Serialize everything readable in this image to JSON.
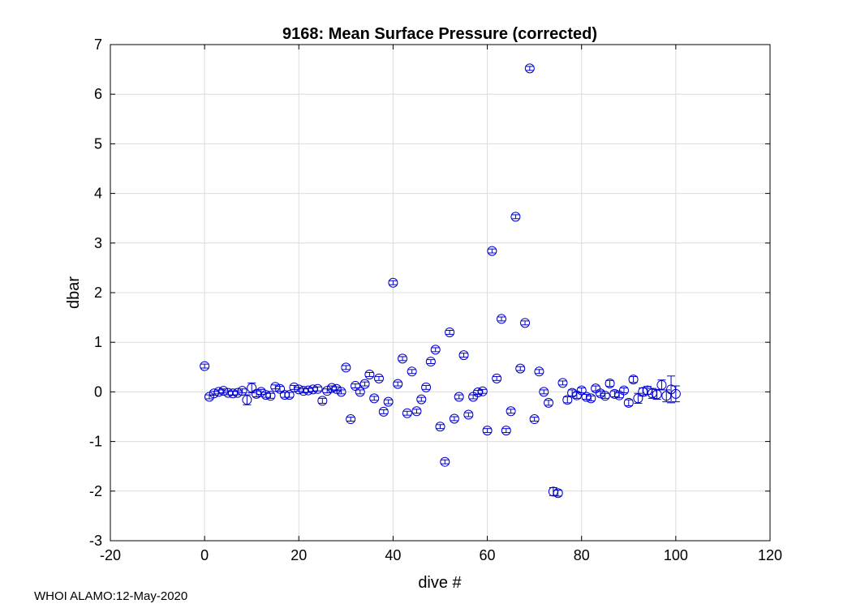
{
  "chart_data": {
    "type": "scatter",
    "title": "9168: Mean Surface Pressure (corrected)",
    "xlabel": "dive #",
    "ylabel": "dbar",
    "xlim": [
      -20,
      120
    ],
    "ylim": [
      -3,
      7
    ],
    "xticks": [
      -20,
      0,
      20,
      40,
      60,
      80,
      100,
      120
    ],
    "yticks": [
      -3,
      -2,
      -1,
      0,
      1,
      2,
      3,
      4,
      5,
      6,
      7
    ],
    "grid": true,
    "marker": "open-circle-with-errorbar",
    "color": "#0000cc",
    "series": [
      {
        "name": "mean surface pressure",
        "points": [
          {
            "x": 0,
            "y": 0.52,
            "err": 0.04
          },
          {
            "x": 1,
            "y": -0.1,
            "err": 0.04
          },
          {
            "x": 2,
            "y": -0.03,
            "err": 0.04
          },
          {
            "x": 3,
            "y": 0.0,
            "err": 0.04
          },
          {
            "x": 4,
            "y": 0.02,
            "err": 0.04
          },
          {
            "x": 5,
            "y": -0.02,
            "err": 0.04
          },
          {
            "x": 6,
            "y": -0.03,
            "err": 0.04
          },
          {
            "x": 7,
            "y": -0.02,
            "err": 0.04
          },
          {
            "x": 8,
            "y": 0.02,
            "err": 0.04
          },
          {
            "x": 9,
            "y": -0.16,
            "err": 0.1
          },
          {
            "x": 10,
            "y": 0.08,
            "err": 0.1
          },
          {
            "x": 11,
            "y": -0.04,
            "err": 0.06
          },
          {
            "x": 12,
            "y": 0.0,
            "err": 0.05
          },
          {
            "x": 13,
            "y": -0.06,
            "err": 0.05
          },
          {
            "x": 14,
            "y": -0.08,
            "err": 0.05
          },
          {
            "x": 15,
            "y": 0.1,
            "err": 0.04
          },
          {
            "x": 16,
            "y": 0.06,
            "err": 0.05
          },
          {
            "x": 17,
            "y": -0.06,
            "err": 0.05
          },
          {
            "x": 18,
            "y": -0.06,
            "err": 0.05
          },
          {
            "x": 19,
            "y": 0.09,
            "err": 0.04
          },
          {
            "x": 20,
            "y": 0.05,
            "err": 0.04
          },
          {
            "x": 21,
            "y": 0.02,
            "err": 0.04
          },
          {
            "x": 22,
            "y": 0.03,
            "err": 0.04
          },
          {
            "x": 23,
            "y": 0.05,
            "err": 0.04
          },
          {
            "x": 24,
            "y": 0.06,
            "err": 0.04
          },
          {
            "x": 25,
            "y": -0.18,
            "err": 0.05
          },
          {
            "x": 26,
            "y": 0.02,
            "err": 0.04
          },
          {
            "x": 27,
            "y": 0.08,
            "err": 0.04
          },
          {
            "x": 28,
            "y": 0.06,
            "err": 0.04
          },
          {
            "x": 29,
            "y": 0.0,
            "err": 0.04
          },
          {
            "x": 30,
            "y": 0.49,
            "err": 0.04
          },
          {
            "x": 31,
            "y": -0.55,
            "err": 0.04
          },
          {
            "x": 32,
            "y": 0.12,
            "err": 0.04
          },
          {
            "x": 33,
            "y": 0.0,
            "err": 0.04
          },
          {
            "x": 34,
            "y": 0.16,
            "err": 0.04
          },
          {
            "x": 35,
            "y": 0.35,
            "err": 0.04
          },
          {
            "x": 36,
            "y": -0.13,
            "err": 0.04
          },
          {
            "x": 37,
            "y": 0.27,
            "err": 0.04
          },
          {
            "x": 38,
            "y": -0.4,
            "err": 0.04
          },
          {
            "x": 39,
            "y": -0.2,
            "err": 0.04
          },
          {
            "x": 40,
            "y": 2.2,
            "err": 0.04
          },
          {
            "x": 41,
            "y": 0.16,
            "err": 0.04
          },
          {
            "x": 42,
            "y": 0.67,
            "err": 0.04
          },
          {
            "x": 43,
            "y": -0.43,
            "err": 0.04
          },
          {
            "x": 44,
            "y": 0.41,
            "err": 0.04
          },
          {
            "x": 45,
            "y": -0.39,
            "err": 0.04
          },
          {
            "x": 46,
            "y": -0.15,
            "err": 0.04
          },
          {
            "x": 47,
            "y": 0.09,
            "err": 0.04
          },
          {
            "x": 48,
            "y": 0.61,
            "err": 0.04
          },
          {
            "x": 49,
            "y": 0.85,
            "err": 0.04
          },
          {
            "x": 50,
            "y": -0.7,
            "err": 0.04
          },
          {
            "x": 51,
            "y": -1.41,
            "err": 0.04
          },
          {
            "x": 52,
            "y": 1.2,
            "err": 0.04
          },
          {
            "x": 53,
            "y": -0.54,
            "err": 0.04
          },
          {
            "x": 54,
            "y": -0.1,
            "err": 0.04
          },
          {
            "x": 55,
            "y": 0.74,
            "err": 0.04
          },
          {
            "x": 56,
            "y": -0.46,
            "err": 0.04
          },
          {
            "x": 57,
            "y": -0.1,
            "err": 0.04
          },
          {
            "x": 58,
            "y": -0.01,
            "err": 0.04
          },
          {
            "x": 59,
            "y": 0.01,
            "err": 0.04
          },
          {
            "x": 60,
            "y": -0.78,
            "err": 0.04
          },
          {
            "x": 61,
            "y": 2.84,
            "err": 0.04
          },
          {
            "x": 62,
            "y": 0.27,
            "err": 0.04
          },
          {
            "x": 63,
            "y": 1.47,
            "err": 0.04
          },
          {
            "x": 64,
            "y": -0.78,
            "err": 0.04
          },
          {
            "x": 65,
            "y": -0.39,
            "err": 0.04
          },
          {
            "x": 66,
            "y": 3.53,
            "err": 0.04
          },
          {
            "x": 67,
            "y": 0.47,
            "err": 0.04
          },
          {
            "x": 68,
            "y": 1.39,
            "err": 0.04
          },
          {
            "x": 69,
            "y": 6.52,
            "err": 0.04
          },
          {
            "x": 70,
            "y": -0.55,
            "err": 0.04
          },
          {
            "x": 71,
            "y": 0.41,
            "err": 0.04
          },
          {
            "x": 72,
            "y": 0.0,
            "err": 0.04
          },
          {
            "x": 73,
            "y": -0.22,
            "err": 0.05
          },
          {
            "x": 74,
            "y": -2.01,
            "err": 0.08
          },
          {
            "x": 75,
            "y": -2.04,
            "err": 0.06
          },
          {
            "x": 76,
            "y": 0.18,
            "err": 0.04
          },
          {
            "x": 77,
            "y": -0.16,
            "err": 0.06
          },
          {
            "x": 78,
            "y": -0.02,
            "err": 0.06
          },
          {
            "x": 79,
            "y": -0.07,
            "err": 0.06
          },
          {
            "x": 80,
            "y": 0.03,
            "err": 0.05
          },
          {
            "x": 81,
            "y": -0.1,
            "err": 0.05
          },
          {
            "x": 82,
            "y": -0.13,
            "err": 0.05
          },
          {
            "x": 83,
            "y": 0.07,
            "err": 0.05
          },
          {
            "x": 84,
            "y": -0.03,
            "err": 0.05
          },
          {
            "x": 85,
            "y": -0.08,
            "err": 0.05
          },
          {
            "x": 86,
            "y": 0.17,
            "err": 0.06
          },
          {
            "x": 87,
            "y": -0.04,
            "err": 0.06
          },
          {
            "x": 88,
            "y": -0.07,
            "err": 0.05
          },
          {
            "x": 89,
            "y": 0.03,
            "err": 0.05
          },
          {
            "x": 90,
            "y": -0.22,
            "err": 0.06
          },
          {
            "x": 91,
            "y": 0.25,
            "err": 0.06
          },
          {
            "x": 92,
            "y": -0.13,
            "err": 0.1
          },
          {
            "x": 93,
            "y": 0.0,
            "err": 0.08
          },
          {
            "x": 94,
            "y": 0.03,
            "err": 0.08
          },
          {
            "x": 95,
            "y": -0.03,
            "err": 0.1
          },
          {
            "x": 96,
            "y": -0.05,
            "err": 0.1
          },
          {
            "x": 97,
            "y": 0.14,
            "err": 0.1
          },
          {
            "x": 98,
            "y": -0.08,
            "err": 0.12
          },
          {
            "x": 99,
            "y": 0.05,
            "err": 0.27
          },
          {
            "x": 100,
            "y": -0.04,
            "err": 0.16
          }
        ]
      }
    ]
  },
  "footer": "WHOI ALAMO:12-May-2020"
}
